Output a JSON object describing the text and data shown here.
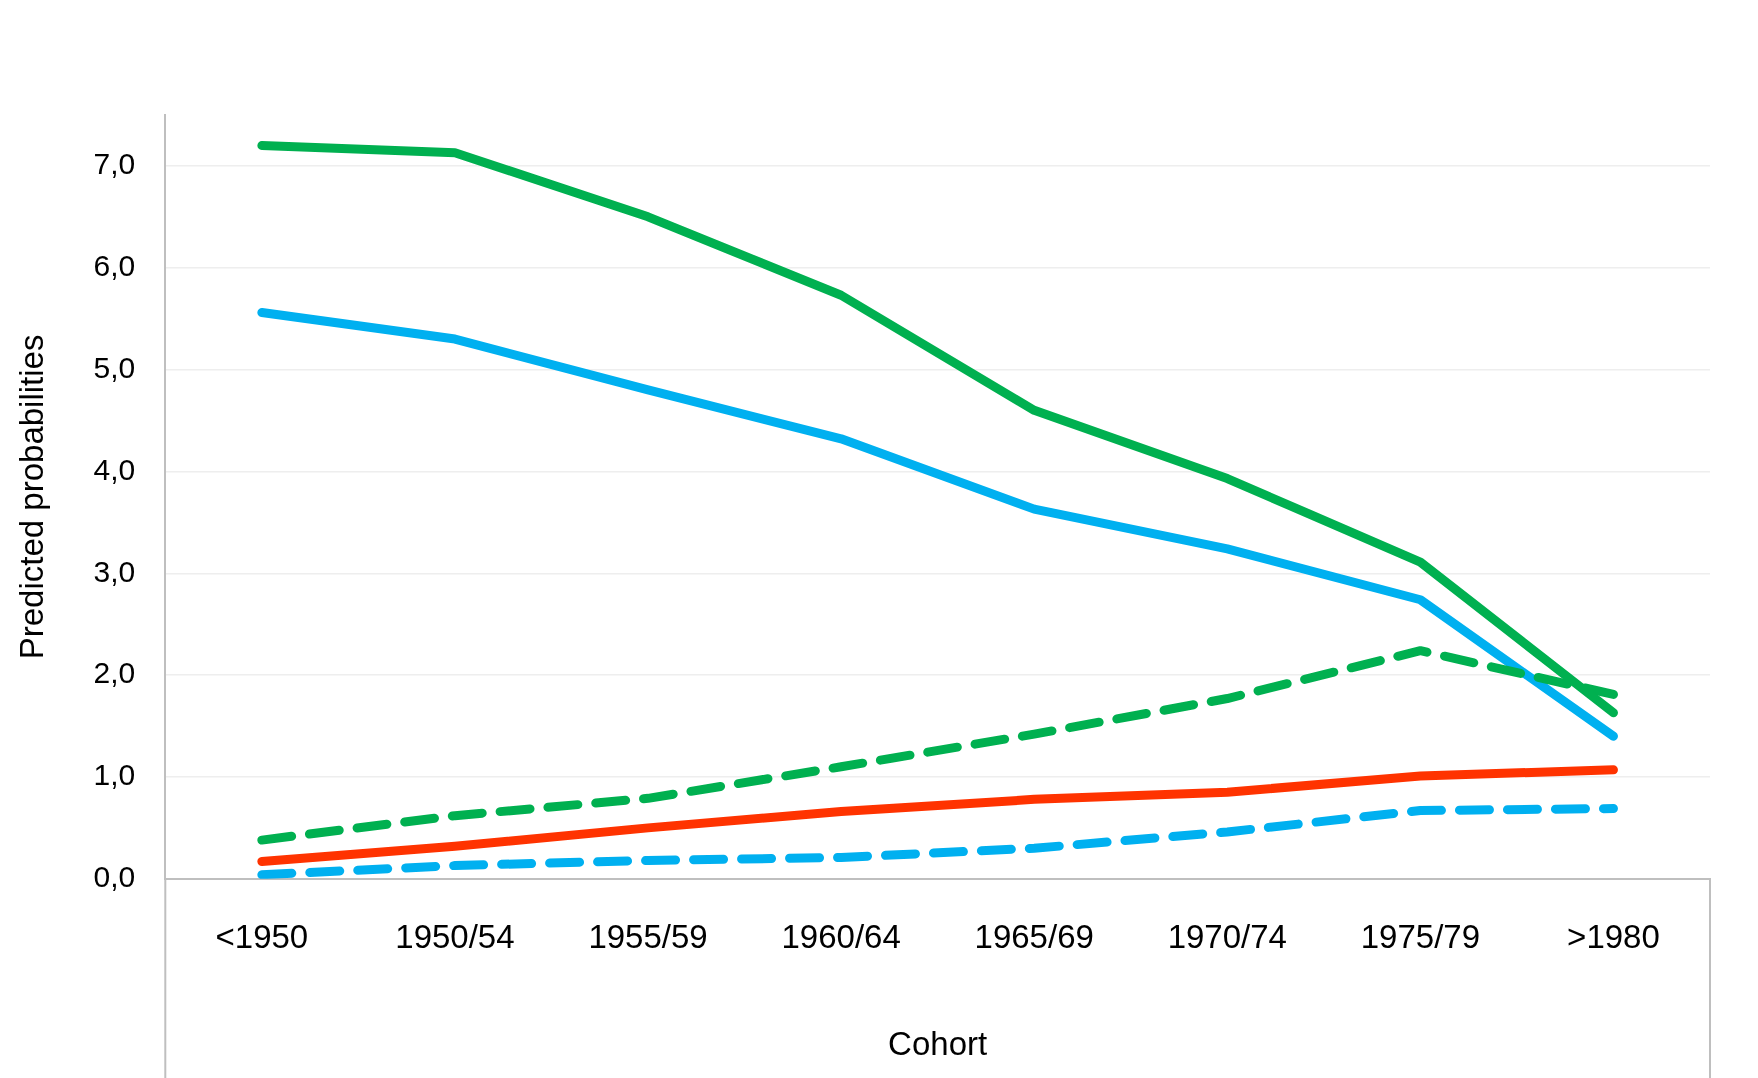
{
  "chart_data": {
    "type": "line",
    "xlabel": "Cohort",
    "ylabel": "Predicted probabilities",
    "categories": [
      "<1950",
      "1950/54",
      "1955/59",
      "1960/64",
      "1965/69",
      "1970/74",
      "1975/79",
      ">1980"
    ],
    "ylim": [
      0,
      7.5
    ],
    "yticks": [
      {
        "value": 0,
        "label": "0,0"
      },
      {
        "value": 1,
        "label": "1,0"
      },
      {
        "value": 2,
        "label": "2,0"
      },
      {
        "value": 3,
        "label": "3,0"
      },
      {
        "value": 4,
        "label": "4,0"
      },
      {
        "value": 5,
        "label": "5,0"
      },
      {
        "value": 6,
        "label": "6,0"
      },
      {
        "value": 7,
        "label": "7,0"
      }
    ],
    "grid": "y",
    "legend": false,
    "marker": "none",
    "series": [
      {
        "color": "#00b050",
        "line_style": "solid",
        "values": [
          7.2,
          7.13,
          6.5,
          5.73,
          4.6,
          3.93,
          3.11,
          1.63
        ]
      },
      {
        "color": "#00b050",
        "line_style": "dashed",
        "values": [
          0.38,
          0.62,
          0.79,
          1.1,
          1.42,
          1.77,
          2.24,
          1.81
        ]
      },
      {
        "color": "#00b0f0",
        "line_style": "solid",
        "values": [
          5.56,
          5.3,
          4.8,
          4.32,
          3.63,
          3.24,
          2.74,
          1.4
        ]
      },
      {
        "color": "#00b0f0",
        "line_style": "dashed",
        "values": [
          0.04,
          0.13,
          0.18,
          0.21,
          0.3,
          0.46,
          0.67,
          0.69
        ]
      },
      {
        "color": "#ff3300",
        "line_style": "solid",
        "values": [
          0.17,
          0.32,
          0.5,
          0.66,
          0.78,
          0.85,
          1.01,
          1.07
        ]
      }
    ]
  }
}
